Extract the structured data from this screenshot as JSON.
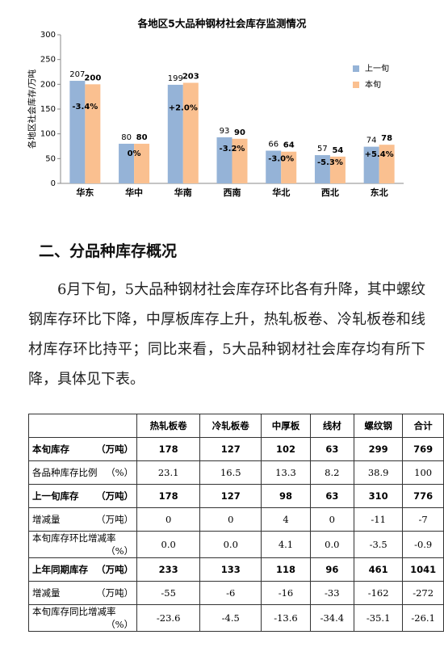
{
  "chart_data": {
    "type": "bar",
    "title": "各地区5大品种钢材社会库存监测情况",
    "y_label": "各地区社会库存/万吨",
    "categories": [
      "华东",
      "华中",
      "华南",
      "西南",
      "华北",
      "西北",
      "东北"
    ],
    "series": [
      {
        "name": "上一旬",
        "color": "#95b3d7",
        "values": [
          207,
          80,
          199,
          93,
          66,
          57,
          74
        ]
      },
      {
        "name": "本旬",
        "color": "#fac090",
        "values": [
          200,
          80,
          203,
          90,
          64,
          54,
          78
        ]
      }
    ],
    "annotations": [
      "-3.4%",
      "0%",
      "+2.0%",
      "-3.2%",
      "-3.0%",
      "-5.3%",
      "+5.4%"
    ],
    "ylim": [
      0,
      300
    ],
    "yticks": [
      0,
      50,
      100,
      150,
      200,
      250,
      300
    ],
    "legend": "right"
  },
  "heading": "二、分品种库存概况",
  "paragraph": "6月下旬，5大品种钢材社会库存环比各有升降，其中螺纹钢库存环比下降，中厚板库存上升，热轧板卷、冷轧板卷和线材库存环比持平；同比来看，5大品种钢材社会库存均有所下降，具体见下表。",
  "table": {
    "headers": [
      "热轧板卷",
      "冷轧板卷",
      "中厚板",
      "线材",
      "螺纹钢",
      "合计"
    ],
    "rows": [
      {
        "label": "本旬库存",
        "unit": "（万吨）",
        "bold": true,
        "cells": [
          "178",
          "127",
          "102",
          "63",
          "299",
          "769"
        ]
      },
      {
        "label": "各品种库存比例",
        "unit": "（%）",
        "bold": false,
        "cells": [
          "23.1",
          "16.5",
          "13.3",
          "8.2",
          "38.9",
          "100"
        ]
      },
      {
        "label": "上一旬库存",
        "unit": "（万吨）",
        "bold": true,
        "cells": [
          "178",
          "127",
          "98",
          "63",
          "310",
          "776"
        ]
      },
      {
        "label": "增减量",
        "unit": "（万吨）",
        "bold": false,
        "cells": [
          "0",
          "0",
          "4",
          "0",
          "-11",
          "-7"
        ]
      },
      {
        "label": "本旬库存环比增减率",
        "unit": "（%）",
        "bold": false,
        "cells": [
          "0.0",
          "0.0",
          "4.1",
          "0.0",
          "-3.5",
          "-0.9"
        ]
      },
      {
        "label": "上年同期库存",
        "unit": "（万吨）",
        "bold": true,
        "cells": [
          "233",
          "133",
          "118",
          "96",
          "461",
          "1041"
        ]
      },
      {
        "label": "增减量",
        "unit": "（万吨）",
        "bold": false,
        "cells": [
          "-55",
          "-6",
          "-16",
          "-33",
          "-162",
          "-272"
        ]
      },
      {
        "label": "本旬库存同比增减率",
        "unit": "（%）",
        "bold": false,
        "cells": [
          "-23.6",
          "-4.5",
          "-13.6",
          "-34.4",
          "-35.1",
          "-26.1"
        ]
      }
    ]
  }
}
